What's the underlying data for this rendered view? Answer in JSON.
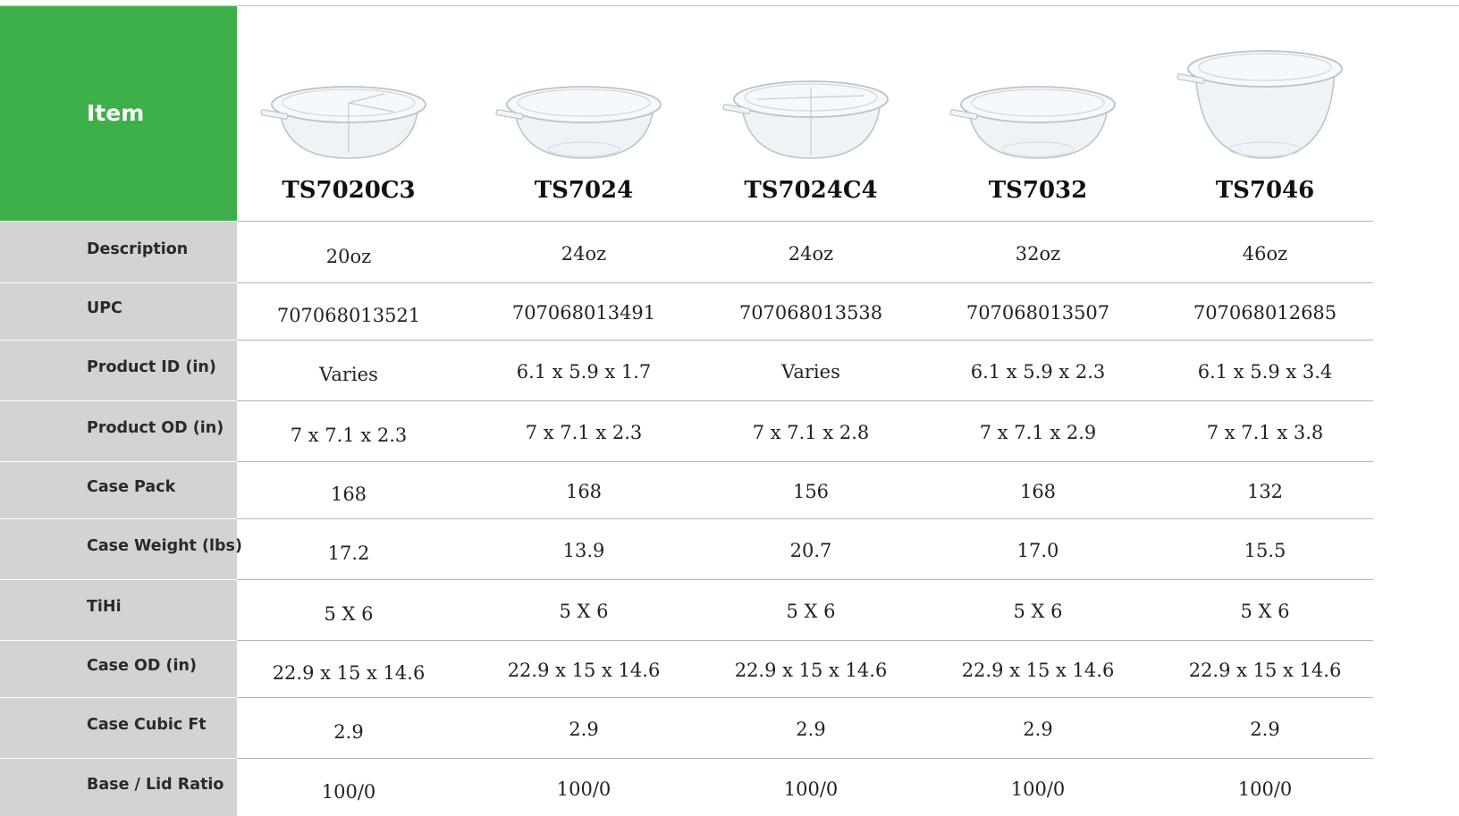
{
  "header": {
    "item_label": "Item"
  },
  "products": [
    {
      "code": "TS7020C3",
      "image": "container-3-compartment",
      "values": [
        "20oz",
        "707068013521",
        "Varies",
        "7 x 7.1 x 2.3",
        "168",
        "17.2",
        "5 X 6",
        "22.9 x 15 x 14.6",
        "2.9",
        "100/0"
      ]
    },
    {
      "code": "TS7024",
      "image": "container-round",
      "values": [
        "24oz",
        "707068013491",
        "6.1 x 5.9 x 1.7",
        "7 x 7.1 x 2.3",
        "168",
        "13.9",
        "5 X 6",
        "22.9 x 15 x 14.6",
        "2.9",
        "100/0"
      ]
    },
    {
      "code": "TS7024C4",
      "image": "container-4-compartment",
      "values": [
        "24oz",
        "707068013538",
        "Varies",
        "7 x 7.1 x 2.8",
        "156",
        "20.7",
        "5 X 6",
        "22.9 x 15 x 14.6",
        "2.9",
        "100/0"
      ]
    },
    {
      "code": "TS7032",
      "image": "container-round",
      "values": [
        "32oz",
        "707068013507",
        "6.1 x 5.9 x 2.3",
        "7 x 7.1 x 2.9",
        "168",
        "17.0",
        "5 X 6",
        "22.9 x 15 x 14.6",
        "2.9",
        "100/0"
      ]
    },
    {
      "code": "TS7046",
      "image": "container-tall",
      "values": [
        "46oz",
        "707068012685",
        "6.1 x 5.9 x 3.4",
        "7 x 7.1 x 3.8",
        "132",
        "15.5",
        "5 X 6",
        "22.9 x 15 x 14.6",
        "2.9",
        "100/0"
      ]
    }
  ],
  "row_labels": [
    "Description",
    "UPC",
    "Product ID (in)",
    "Product OD (in)",
    "Case Pack",
    "Case Weight (lbs)",
    "TiHi",
    "Case OD (in)",
    "Case Cubic Ft",
    "Base / Lid Ratio"
  ],
  "colors": {
    "header_green": "#3eb049",
    "label_gray": "#d2d3d5",
    "rule": "#b5b5b5"
  }
}
